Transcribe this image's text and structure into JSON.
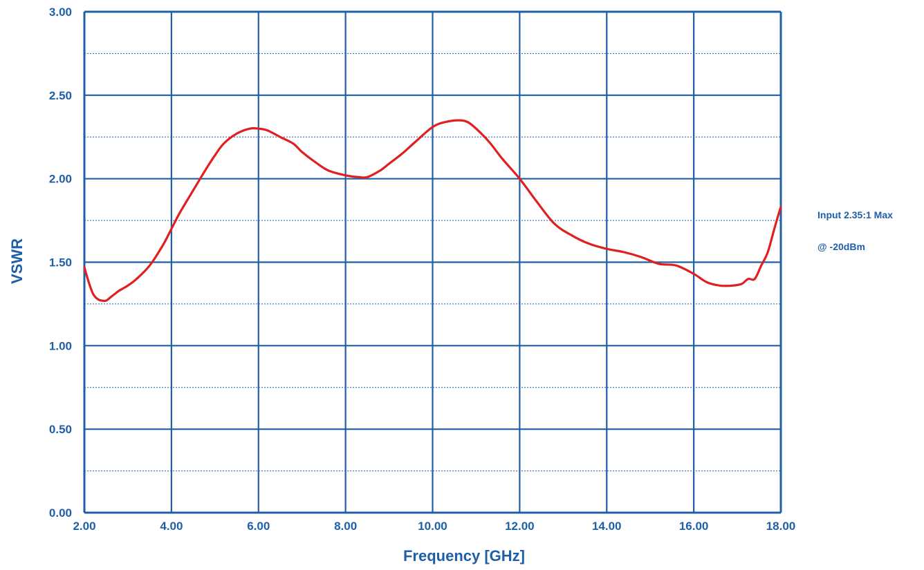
{
  "chart_data": {
    "type": "line",
    "xlabel": "Frequency [GHz]",
    "ylabel": "VSWR",
    "xlim": [
      2,
      18
    ],
    "ylim": [
      0,
      3
    ],
    "x_ticks": [
      "2.00",
      "4.00",
      "6.00",
      "8.00",
      "10.00",
      "12.00",
      "14.00",
      "16.00",
      "18.00"
    ],
    "y_ticks": [
      "0.00",
      "0.50",
      "1.00",
      "1.50",
      "2.00",
      "2.50",
      "3.00"
    ],
    "y_minor_gridlines": [
      0.25,
      0.75,
      1.25,
      1.75,
      2.25,
      2.75
    ],
    "grid": true,
    "annotations": [
      "Input 2.35:1 Max",
      "@ -20dBm"
    ],
    "colors": {
      "grid": "#1f5fa8",
      "line": "#e02020",
      "text": "#1f5fa8"
    },
    "series": [
      {
        "x": [
          2.0,
          2.1,
          2.2,
          2.3,
          2.4,
          2.5,
          2.6,
          2.7,
          2.8,
          3.0,
          3.2,
          3.5,
          3.8,
          4.0,
          4.2,
          4.5,
          4.8,
          5.0,
          5.2,
          5.5,
          5.8,
          6.0,
          6.2,
          6.5,
          6.8,
          7.0,
          7.3,
          7.6,
          8.0,
          8.3,
          8.5,
          8.8,
          9.0,
          9.3,
          9.6,
          10.0,
          10.3,
          10.6,
          10.8,
          11.0,
          11.3,
          11.6,
          12.0,
          12.4,
          12.8,
          13.2,
          13.6,
          14.0,
          14.4,
          14.8,
          15.2,
          15.6,
          16.0,
          16.3,
          16.6,
          16.9,
          17.1,
          17.25,
          17.4,
          17.55,
          17.7,
          17.85,
          17.95,
          18.0
        ],
        "y": [
          1.47,
          1.38,
          1.31,
          1.28,
          1.27,
          1.27,
          1.29,
          1.31,
          1.33,
          1.36,
          1.4,
          1.48,
          1.6,
          1.7,
          1.8,
          1.93,
          2.06,
          2.14,
          2.21,
          2.27,
          2.3,
          2.3,
          2.29,
          2.25,
          2.21,
          2.16,
          2.1,
          2.05,
          2.02,
          2.01,
          2.01,
          2.05,
          2.09,
          2.15,
          2.22,
          2.31,
          2.34,
          2.35,
          2.34,
          2.3,
          2.22,
          2.12,
          2.0,
          1.86,
          1.73,
          1.66,
          1.61,
          1.58,
          1.56,
          1.53,
          1.49,
          1.48,
          1.43,
          1.38,
          1.36,
          1.36,
          1.37,
          1.4,
          1.4,
          1.48,
          1.56,
          1.7,
          1.79,
          1.83
        ]
      }
    ]
  }
}
